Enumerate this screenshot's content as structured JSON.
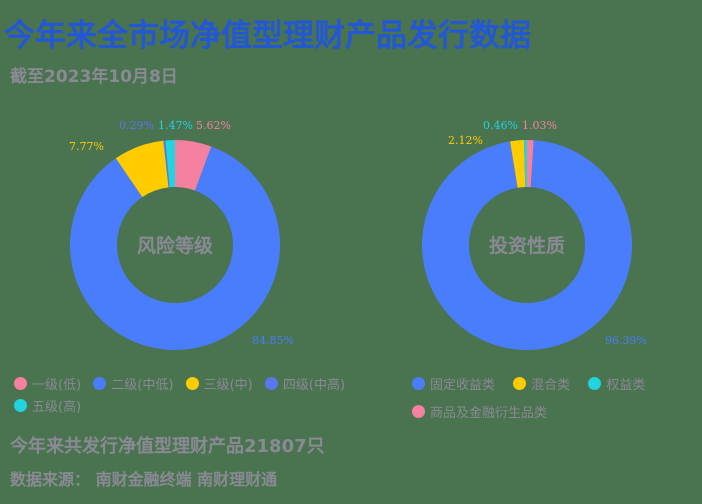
{
  "header": {
    "title": "今年来全市场净值型理财产品发行数据",
    "subtitle": "截至2023年10月8日"
  },
  "colors": {
    "background": "#4a7350",
    "title": "#2257d6",
    "text_gray": "#8a8a94",
    "pink": "#f4819f",
    "blue": "#4a7dfb",
    "yellow": "#ffcc00",
    "purple_blue": "#5b74f0",
    "cyan": "#22d3e0"
  },
  "chart_data": [
    {
      "type": "pie",
      "variant": "donut",
      "title": "风险等级",
      "categories": [
        "一级(低)",
        "二级(中低)",
        "三级(中)",
        "四级(中高)",
        "五级(高)"
      ],
      "values": [
        5.62,
        84.85,
        7.77,
        0.29,
        1.47
      ],
      "labels": [
        "5.62%",
        "84.85%",
        "7.77%",
        "0.29%",
        "1.47%"
      ],
      "colors": [
        "#f4819f",
        "#4a7dfb",
        "#ffcc00",
        "#5b74f0",
        "#22d3e0"
      ],
      "legend_position": "bottom"
    },
    {
      "type": "pie",
      "variant": "donut",
      "title": "投资性质",
      "categories": [
        "商品及金融衍生品类",
        "固定收益类",
        "混合类",
        "权益类"
      ],
      "values": [
        1.03,
        96.39,
        2.12,
        0.46
      ],
      "labels": [
        "1.03%",
        "96.39%",
        "2.12%",
        "0.46%"
      ],
      "colors": [
        "#f4819f",
        "#4a7dfb",
        "#ffcc00",
        "#22d3e0"
      ],
      "legend_position": "bottom"
    }
  ],
  "legend_left": [
    {
      "label": "一级(低)",
      "color": "#f4819f"
    },
    {
      "label": "二级(中低)",
      "color": "#4a7dfb"
    },
    {
      "label": "三级(中)",
      "color": "#ffcc00"
    },
    {
      "label": "四级(中高)",
      "color": "#5b74f0"
    },
    {
      "label": "五级(高)",
      "color": "#22d3e0"
    }
  ],
  "legend_right": [
    {
      "label": "固定收益类",
      "color": "#4a7dfb"
    },
    {
      "label": "混合类",
      "color": "#ffcc00"
    },
    {
      "label": "权益类",
      "color": "#22d3e0"
    },
    {
      "label": "商品及金融衍生品类",
      "color": "#f4819f"
    }
  ],
  "footer": {
    "total": "今年来共发行净值型理财产品21807只",
    "source": "数据来源： 南财金融终端 南财理财通"
  }
}
